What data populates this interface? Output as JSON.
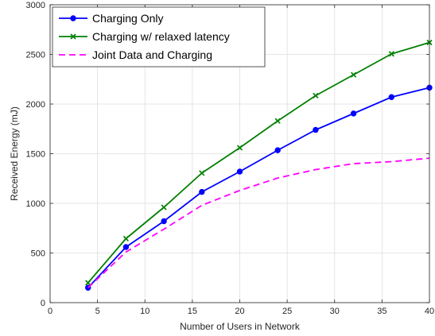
{
  "chart_data": {
    "type": "line",
    "title": "",
    "xlabel": "Number of Users in Network",
    "ylabel": "Received Energy (mJ)",
    "xlim": [
      0,
      40
    ],
    "ylim": [
      0,
      3000
    ],
    "xticks": [
      0,
      5,
      10,
      15,
      20,
      25,
      30,
      35,
      40
    ],
    "yticks": [
      0,
      500,
      1000,
      1500,
      2000,
      2500,
      3000
    ],
    "grid": true,
    "legend_position": "top-left",
    "x": [
      4,
      8,
      12,
      16,
      20,
      24,
      28,
      32,
      36,
      40
    ],
    "series": [
      {
        "name": "Charging Only",
        "color": "#0000ff",
        "line_style": "solid",
        "marker": "circle",
        "values": [
          150,
          560,
          820,
          1115,
          1320,
          1535,
          1740,
          1905,
          2070,
          2165
        ]
      },
      {
        "name": "Charging w/ relaxed latency",
        "color": "#008000",
        "line_style": "solid",
        "marker": "x",
        "values": [
          200,
          645,
          960,
          1305,
          1560,
          1830,
          2085,
          2295,
          2505,
          2620
        ]
      },
      {
        "name": "Joint Data and Charging",
        "color": "#ff00ff",
        "line_style": "dashed",
        "marker": "none",
        "values": [
          150,
          510,
          740,
          980,
          1130,
          1255,
          1340,
          1400,
          1420,
          1455
        ]
      }
    ]
  }
}
